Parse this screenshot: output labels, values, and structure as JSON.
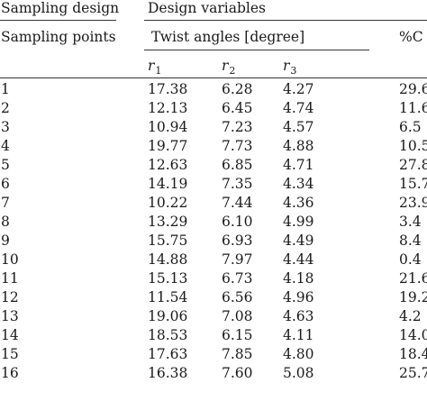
{
  "header": {
    "sampling_design": "Sampling design",
    "design_variables": "Design variables",
    "sampling_points": "Sampling points",
    "twist_angles": "Twist angles [degree]",
    "percent_c": "%C",
    "r1_base": "r",
    "r1_sub": "1",
    "r2_base": "r",
    "r2_sub": "2",
    "r3_base": "r",
    "r3_sub": "3"
  },
  "rows": [
    {
      "point": "1",
      "r1": "17.38",
      "r2": "6.28",
      "r3": "4.27",
      "pc": "29.6"
    },
    {
      "point": "2",
      "r1": "12.13",
      "r2": "6.45",
      "r3": "4.74",
      "pc": "11.6"
    },
    {
      "point": "3",
      "r1": "10.94",
      "r2": "7.23",
      "r3": "4.57",
      "pc": "6.5"
    },
    {
      "point": "4",
      "r1": "19.77",
      "r2": "7.73",
      "r3": "4.88",
      "pc": "10.5"
    },
    {
      "point": "5",
      "r1": "12.63",
      "r2": "6.85",
      "r3": "4.71",
      "pc": "27.8"
    },
    {
      "point": "6",
      "r1": "14.19",
      "r2": "7.35",
      "r3": "4.34",
      "pc": "15.7"
    },
    {
      "point": "7",
      "r1": "10.22",
      "r2": "7.44",
      "r3": "4.36",
      "pc": "23.9"
    },
    {
      "point": "8",
      "r1": "13.29",
      "r2": "6.10",
      "r3": "4.99",
      "pc": "3.4"
    },
    {
      "point": "9",
      "r1": "15.75",
      "r2": "6.93",
      "r3": "4.49",
      "pc": "8.4"
    },
    {
      "point": "10",
      "r1": "14.88",
      "r2": "7.97",
      "r3": "4.44",
      "pc": "0.4"
    },
    {
      "point": "11",
      "r1": "15.13",
      "r2": "6.73",
      "r3": "4.18",
      "pc": "21.6"
    },
    {
      "point": "12",
      "r1": "11.54",
      "r2": "6.56",
      "r3": "4.96",
      "pc": "19.2"
    },
    {
      "point": "13",
      "r1": "19.06",
      "r2": "7.08",
      "r3": "4.63",
      "pc": "4.2"
    },
    {
      "point": "14",
      "r1": "18.53",
      "r2": "6.15",
      "r3": "4.11",
      "pc": "14.0"
    },
    {
      "point": "15",
      "r1": "17.63",
      "r2": "7.85",
      "r3": "4.80",
      "pc": "18.4"
    },
    {
      "point": "16",
      "r1": "16.38",
      "r2": "7.60",
      "r3": "5.08",
      "pc": "25.7"
    }
  ]
}
